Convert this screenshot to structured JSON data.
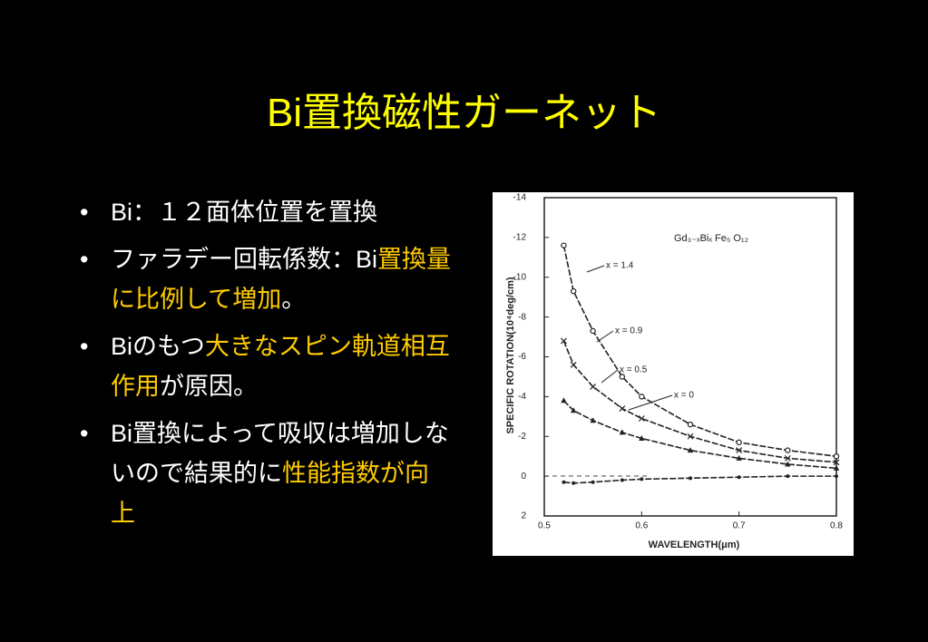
{
  "slide": {
    "title": "Bi置換磁性ガーネット",
    "bullets": [
      {
        "runs": [
          {
            "text": "Bi：１２面体位置を置換",
            "highlight": false
          }
        ]
      },
      {
        "runs": [
          {
            "text": "ファラデー回転係数：Bi",
            "highlight": false
          },
          {
            "text": "置換量に比例して増加",
            "highlight": true
          },
          {
            "text": "。",
            "highlight": false
          }
        ]
      },
      {
        "runs": [
          {
            "text": "Biのもつ",
            "highlight": false
          },
          {
            "text": "大きなスピン軌道相互作用",
            "highlight": true
          },
          {
            "text": "が原因。",
            "highlight": false
          }
        ]
      },
      {
        "runs": [
          {
            "text": "Bi置換によって吸収は増加しないので結果的に",
            "highlight": false
          },
          {
            "text": "性能指数が向上",
            "highlight": true
          }
        ]
      }
    ]
  },
  "chart_data": {
    "type": "line",
    "annotation": "Gd₃₋ₓBiₓ Fe₅ O₁₂",
    "x_label": "WAVELENGTH(μm)",
    "y_label": "SPECIFIC ROTATION(10⁴deg/cm)",
    "x": [
      0.52,
      0.53,
      0.55,
      0.58,
      0.6,
      0.65,
      0.7,
      0.75,
      0.8
    ],
    "series": [
      {
        "name": "x = 1.4",
        "color": "#222222",
        "marker": "circle",
        "values": [
          -11.6,
          -9.3,
          -7.3,
          -5.0,
          -4.0,
          -2.6,
          -1.7,
          -1.3,
          -1.0
        ]
      },
      {
        "name": "x = 0.9",
        "color": "#222222",
        "marker": "cross",
        "values": [
          -6.8,
          -5.6,
          -4.5,
          -3.4,
          -2.9,
          -2.0,
          -1.3,
          -0.9,
          -0.7
        ]
      },
      {
        "name": "x = 0.5",
        "color": "#222222",
        "marker": "triangle",
        "values": [
          -3.8,
          -3.3,
          -2.8,
          -2.2,
          -1.9,
          -1.3,
          -0.9,
          -0.6,
          -0.4
        ]
      },
      {
        "name": "x = 0",
        "color": "#222222",
        "marker": "dot",
        "values": [
          0.3,
          0.35,
          0.3,
          0.2,
          0.15,
          0.1,
          0.05,
          0.0,
          0.0
        ]
      }
    ],
    "xlim": [
      0.5,
      0.8
    ],
    "xticks": [
      0.5,
      0.6,
      0.7,
      0.8
    ],
    "ylim": [
      2,
      -14
    ],
    "yticks": [
      2,
      0,
      -2,
      -4,
      -6,
      -8,
      -10,
      -12,
      -14
    ]
  }
}
